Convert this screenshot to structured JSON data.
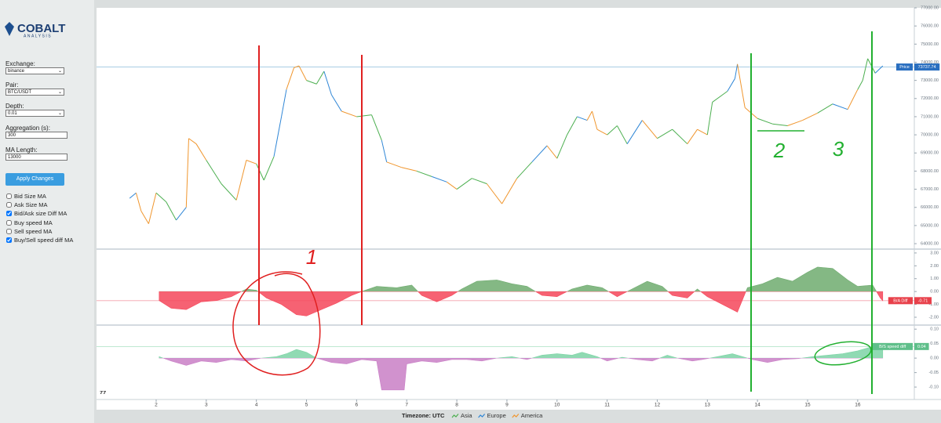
{
  "sidebar": {
    "logo": {
      "name": "COBALT",
      "tagline": "ANALYSIS"
    },
    "fields": [
      {
        "label": "Exchange:",
        "value": "binance",
        "kind": "select"
      },
      {
        "label": "Pair:",
        "value": "BTC/USDT",
        "kind": "select"
      },
      {
        "label": "Depth:",
        "value": "0.01",
        "kind": "select"
      },
      {
        "label": "Aggregation (s):",
        "value": "300",
        "kind": "input"
      },
      {
        "label": "MA Length:",
        "value": "13000",
        "kind": "input"
      }
    ],
    "button": "Apply Changes",
    "toggles": [
      {
        "label": "Bid Size MA",
        "checked": false
      },
      {
        "label": "Ask Size MA",
        "checked": false
      },
      {
        "label": "Bid/Ask size Diff MA",
        "checked": true
      },
      {
        "label": "Buy speed MA",
        "checked": false
      },
      {
        "label": "Sell speed MA",
        "checked": false
      },
      {
        "label": "Buy/Sell speed diff MA",
        "checked": true
      }
    ]
  },
  "chart_data": [
    {
      "type": "line",
      "x": [
        1.47,
        1.6,
        1.7,
        1.85,
        2.0,
        2.2,
        2.4,
        2.6,
        2.65,
        2.8,
        3.0,
        3.3,
        3.6,
        3.8,
        4.0,
        4.15,
        4.35,
        4.5,
        4.6,
        4.75,
        4.85,
        5.0,
        5.2,
        5.35,
        5.5,
        5.7,
        6.0,
        6.3,
        6.5,
        6.6,
        6.9,
        7.2,
        7.5,
        7.8,
        8.0,
        8.3,
        8.6,
        8.9,
        9.2,
        9.5,
        9.8,
        10.0,
        10.2,
        10.4,
        10.6,
        10.7,
        10.8,
        11.0,
        11.2,
        11.4,
        11.7,
        12.0,
        12.3,
        12.6,
        12.8,
        13.0,
        13.1,
        13.4,
        13.55,
        13.6,
        13.75,
        14.0,
        14.3,
        14.6,
        14.9,
        15.2,
        15.5,
        15.8,
        16.0,
        16.1,
        16.2,
        16.35,
        16.5
      ],
      "series": [
        {
          "name": "Price",
          "values": [
            66500,
            66800,
            65800,
            65100,
            66800,
            66300,
            65300,
            66000,
            69800,
            69500,
            68600,
            67300,
            66400,
            68600,
            68400,
            67500,
            68800,
            71000,
            72500,
            73700,
            73800,
            73000,
            72800,
            73500,
            72200,
            71300,
            71000,
            71100,
            69700,
            68500,
            68200,
            68000,
            67700,
            67400,
            67000,
            67600,
            67300,
            66200,
            67600,
            68500,
            69400,
            68700,
            70000,
            71000,
            70800,
            71300,
            70300,
            70000,
            70500,
            69500,
            70800,
            69800,
            70300,
            69500,
            70300,
            70000,
            71800,
            72400,
            73100,
            73900,
            71500,
            70900,
            70600,
            70500,
            70800,
            71200,
            71700,
            71400,
            72500,
            73000,
            74200,
            73400,
            73800
          ]
        }
      ],
      "xlim": [
        0.81,
        17.13
      ],
      "xticks": [
        2,
        3,
        4,
        5,
        6,
        7,
        8,
        9,
        10,
        11,
        12,
        13,
        14,
        15,
        16
      ],
      "ylim": [
        63700,
        77000
      ],
      "yticks": [
        {
          "value": 77000,
          "label": "77000.00"
        },
        {
          "value": 76000,
          "label": "76000.00"
        },
        {
          "value": 75000,
          "label": "75000.00"
        },
        {
          "value": 74000,
          "label": "74000.00"
        },
        {
          "value": 73000,
          "label": "73000.00"
        },
        {
          "value": 72000,
          "label": "72000.00"
        },
        {
          "value": 71000,
          "label": "71000.00"
        },
        {
          "value": 70000,
          "label": "70000.00"
        },
        {
          "value": 69000,
          "label": "69000.00"
        },
        {
          "value": 68000,
          "label": "68000.00"
        },
        {
          "value": 67000,
          "label": "67000.00"
        },
        {
          "value": 66000,
          "label": "66000.00"
        },
        {
          "value": 65000,
          "label": "65000.00"
        },
        {
          "value": 64000,
          "label": "64000.00"
        }
      ],
      "last_value": 73737.74,
      "label_color": "#2a6fc0",
      "line_color": "#9cc6e0"
    },
    {
      "type": "area",
      "x": [
        2.06,
        2.3,
        2.6,
        2.9,
        3.2,
        3.5,
        3.8,
        4.0,
        4.2,
        4.5,
        4.8,
        5.0,
        5.3,
        5.6,
        5.9,
        6.1,
        6.4,
        6.8,
        7.1,
        7.3,
        7.6,
        7.9,
        8.1,
        8.4,
        8.8,
        9.1,
        9.4,
        9.7,
        10.0,
        10.3,
        10.6,
        10.9,
        11.2,
        11.5,
        11.8,
        12.1,
        12.3,
        12.6,
        12.8,
        13.0,
        13.3,
        13.6,
        13.8,
        14.1,
        14.4,
        14.7,
        15.0,
        15.2,
        15.5,
        15.8,
        16.0,
        16.3,
        16.45,
        16.5
      ],
      "series": [
        {
          "name": "B/A Diff",
          "values": [
            -0.7,
            -1.3,
            -1.4,
            -0.8,
            -0.7,
            -0.4,
            0.2,
            0.1,
            -0.5,
            -1.0,
            -1.8,
            -1.9,
            -1.4,
            -0.9,
            -0.3,
            0.0,
            0.4,
            0.3,
            0.5,
            -0.3,
            -0.8,
            -0.3,
            0.2,
            0.8,
            0.9,
            0.6,
            0.4,
            -0.3,
            -0.4,
            0.2,
            0.5,
            0.3,
            -0.4,
            0.2,
            0.8,
            0.4,
            -0.3,
            -0.5,
            0.2,
            -0.4,
            -1.0,
            -1.6,
            0.3,
            0.6,
            1.1,
            0.8,
            1.5,
            1.9,
            1.8,
            0.9,
            0.4,
            0.5,
            -0.5,
            -0.71
          ],
          "pos_color": "#6fab6f",
          "neg_color": "#f5475a"
        }
      ],
      "xlim": [
        0.81,
        17.13
      ],
      "ylim": [
        -2.61,
        3.3
      ],
      "yticks": [
        {
          "value": 3,
          "label": "3.00"
        },
        {
          "value": 2,
          "label": "2.00"
        },
        {
          "value": 1,
          "label": "1.00"
        },
        {
          "value": 0,
          "label": "0.00"
        },
        {
          "value": -1,
          "label": "-1.00"
        },
        {
          "value": -2,
          "label": "-2.00"
        }
      ],
      "last_value": -0.71,
      "label_color": "#e8404a",
      "line_color": "#f4a0ac"
    },
    {
      "type": "area",
      "x": [
        2.06,
        2.3,
        2.6,
        2.9,
        3.2,
        3.5,
        3.8,
        4.1,
        4.4,
        4.6,
        4.8,
        5.0,
        5.2,
        5.5,
        5.8,
        6.1,
        6.4,
        6.5,
        6.95,
        7.0,
        7.3,
        7.6,
        7.9,
        8.2,
        8.5,
        8.8,
        9.1,
        9.4,
        9.7,
        10.0,
        10.3,
        10.5,
        10.8,
        11.0,
        11.3,
        11.6,
        11.9,
        12.2,
        12.4,
        12.7,
        12.9,
        13.2,
        13.5,
        13.9,
        14.2,
        14.5,
        14.8,
        15.1,
        15.4,
        15.7,
        16.0,
        16.3,
        16.5
      ],
      "series": [
        {
          "name": "B/S speed diff",
          "values": [
            0.005,
            -0.01,
            -0.025,
            -0.01,
            -0.015,
            -0.005,
            -0.01,
            0.0,
            0.005,
            0.015,
            0.03,
            0.02,
            0.0,
            -0.015,
            -0.02,
            -0.005,
            -0.01,
            -0.11,
            -0.11,
            -0.02,
            -0.01,
            -0.015,
            -0.005,
            -0.005,
            -0.01,
            0.0,
            0.005,
            -0.005,
            0.01,
            0.015,
            0.01,
            0.02,
            0.005,
            -0.01,
            0.003,
            -0.005,
            -0.01,
            0.01,
            0.0,
            -0.01,
            -0.005,
            0.005,
            0.015,
            -0.005,
            -0.015,
            -0.005,
            -0.002,
            0.005,
            0.01,
            0.015,
            0.025,
            0.04,
            0.04
          ],
          "pos_color": "#7dd3a6",
          "neg_color": "#c97fc6"
        }
      ],
      "xlim": [
        0.81,
        17.13
      ],
      "ylim": [
        -0.143,
        0.114
      ],
      "yticks": [
        {
          "value": 0.1,
          "label": "0.10"
        },
        {
          "value": 0.05,
          "label": "0.05"
        },
        {
          "value": 0,
          "label": "0.00"
        },
        {
          "value": -0.05,
          "label": "-0.05"
        },
        {
          "value": -0.1,
          "label": "-0.10"
        }
      ],
      "last_value": 0.04,
      "label_color": "#5fbf8a",
      "line_color": "#a8e0c2"
    }
  ],
  "footer": {
    "timezone": "Timezone: UTC",
    "sessions": [
      {
        "name": "Asia",
        "color": "#4caf50"
      },
      {
        "name": "Europe",
        "color": "#2f86d6"
      },
      {
        "name": "America",
        "color": "#f0962e"
      }
    ]
  },
  "annotations": [
    "1",
    "2",
    "3"
  ]
}
